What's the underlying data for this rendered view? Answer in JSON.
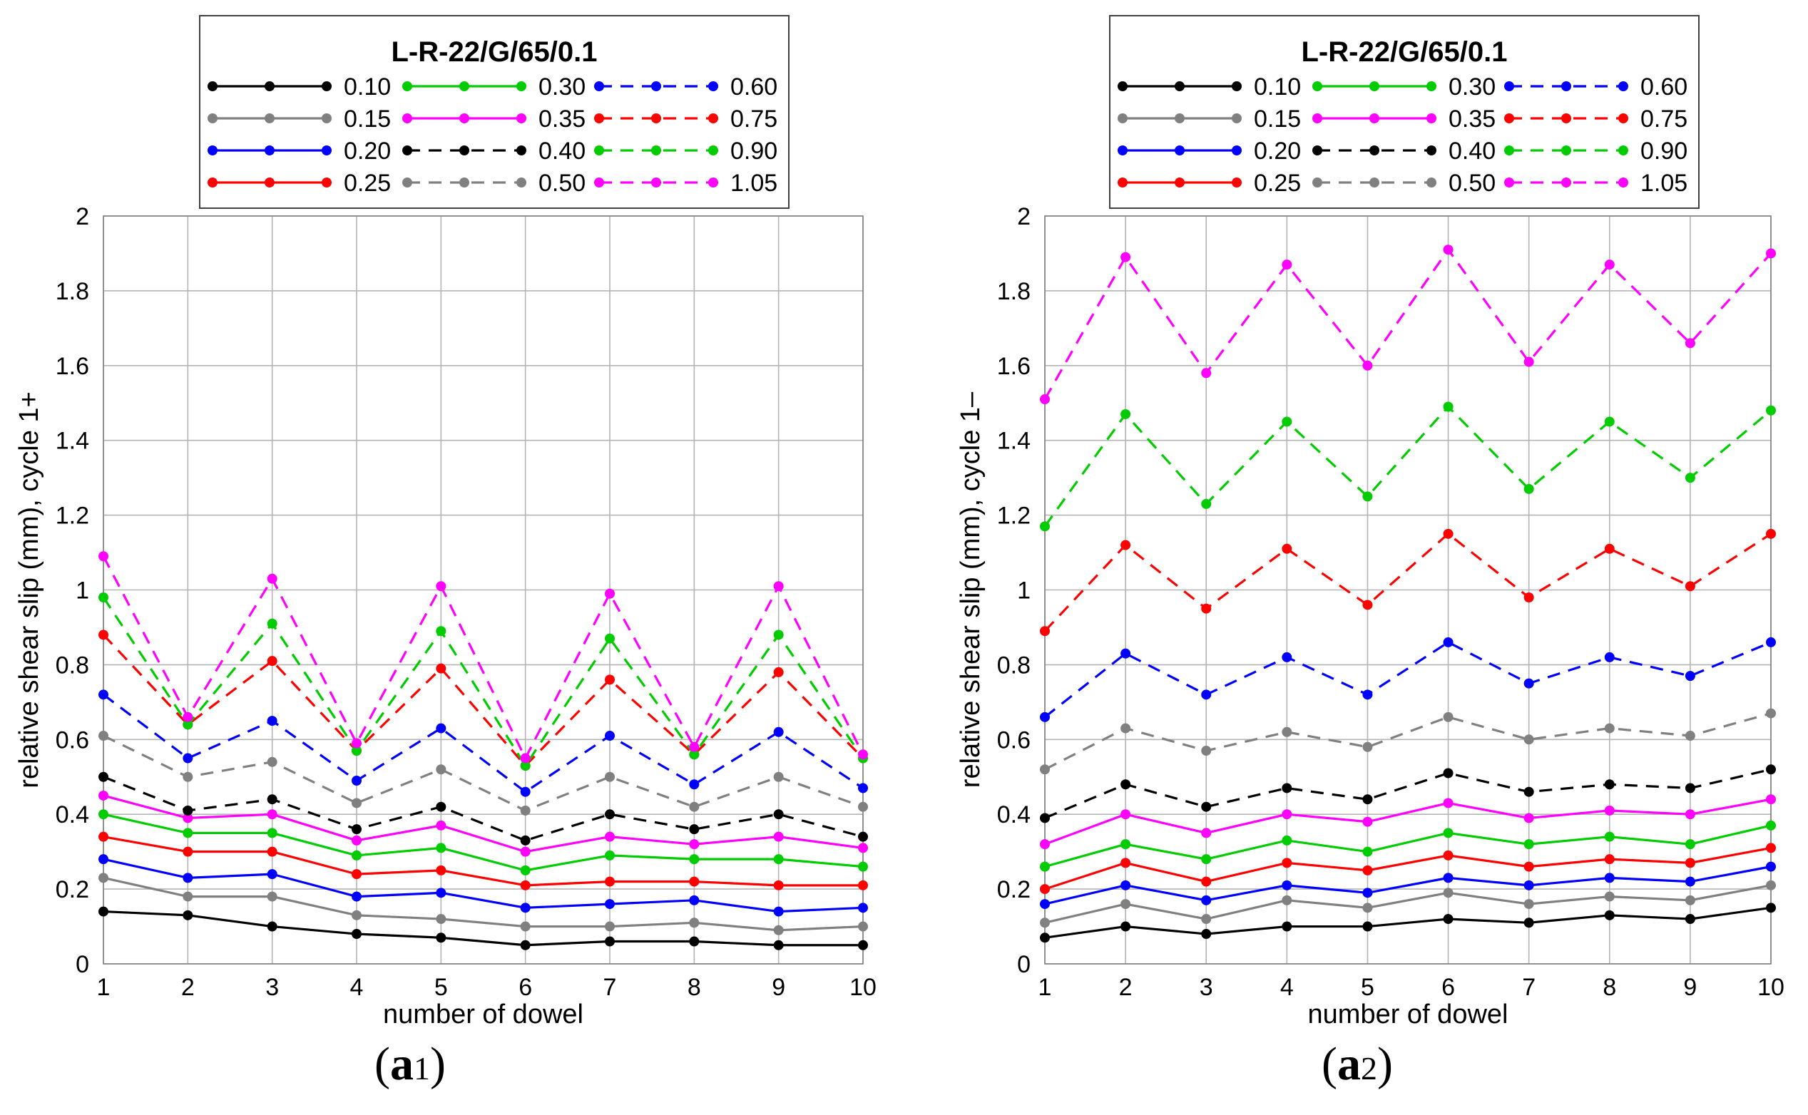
{
  "chart_data": [
    {
      "type": "line",
      "panel_label": {
        "paren_open": "(",
        "letter": "a",
        "index": "1",
        "paren_close": ")"
      },
      "legend_title": "L-R-22/G/65/0.1",
      "xlabel": "number of dowel",
      "ylabel": "relative shear slip (mm), cycle 1+",
      "xlim": [
        1,
        10
      ],
      "ylim": [
        0,
        2
      ],
      "x_ticks": [
        "1",
        "2",
        "3",
        "4",
        "5",
        "6",
        "7",
        "8",
        "9",
        "10"
      ],
      "y_ticks": [
        "0",
        "0.2",
        "0.4",
        "0.6",
        "0.8",
        "1",
        "1.2",
        "1.4",
        "1.6",
        "1.8",
        "2"
      ],
      "x": [
        1,
        2,
        3,
        4,
        5,
        6,
        7,
        8,
        9,
        10
      ],
      "series": [
        {
          "name": "0.10",
          "color": "#000000",
          "dash": "solid",
          "values": [
            0.14,
            0.13,
            0.1,
            0.08,
            0.07,
            0.05,
            0.06,
            0.06,
            0.05,
            0.05
          ]
        },
        {
          "name": "0.15",
          "color": "#808080",
          "dash": "solid",
          "values": [
            0.23,
            0.18,
            0.18,
            0.13,
            0.12,
            0.1,
            0.1,
            0.11,
            0.09,
            0.1
          ]
        },
        {
          "name": "0.20",
          "color": "#0000ff",
          "dash": "solid",
          "values": [
            0.28,
            0.23,
            0.24,
            0.18,
            0.19,
            0.15,
            0.16,
            0.17,
            0.14,
            0.15
          ]
        },
        {
          "name": "0.25",
          "color": "#ff0000",
          "dash": "solid",
          "values": [
            0.34,
            0.3,
            0.3,
            0.24,
            0.25,
            0.21,
            0.22,
            0.22,
            0.21,
            0.21
          ]
        },
        {
          "name": "0.30",
          "color": "#00cc00",
          "dash": "solid",
          "values": [
            0.4,
            0.35,
            0.35,
            0.29,
            0.31,
            0.25,
            0.29,
            0.28,
            0.28,
            0.26
          ]
        },
        {
          "name": "0.35",
          "color": "#ff00ff",
          "dash": "solid",
          "values": [
            0.45,
            0.39,
            0.4,
            0.33,
            0.37,
            0.3,
            0.34,
            0.32,
            0.34,
            0.31
          ]
        },
        {
          "name": "0.40",
          "color": "#000000",
          "dash": "dashed",
          "values": [
            0.5,
            0.41,
            0.44,
            0.36,
            0.42,
            0.33,
            0.4,
            0.36,
            0.4,
            0.34
          ]
        },
        {
          "name": "0.50",
          "color": "#808080",
          "dash": "dashed",
          "values": [
            0.61,
            0.5,
            0.54,
            0.43,
            0.52,
            0.41,
            0.5,
            0.42,
            0.5,
            0.42
          ]
        },
        {
          "name": "0.60",
          "color": "#0000ff",
          "dash": "dashed",
          "values": [
            0.72,
            0.55,
            0.65,
            0.49,
            0.63,
            0.46,
            0.61,
            0.48,
            0.62,
            0.47
          ]
        },
        {
          "name": "0.75",
          "color": "#ff0000",
          "dash": "dashed",
          "values": [
            0.88,
            0.64,
            0.81,
            0.57,
            0.79,
            0.53,
            0.76,
            0.56,
            0.78,
            0.55
          ]
        },
        {
          "name": "0.90",
          "color": "#00cc00",
          "dash": "dashed",
          "values": [
            0.98,
            0.64,
            0.91,
            0.57,
            0.89,
            0.53,
            0.87,
            0.56,
            0.88,
            0.55
          ]
        },
        {
          "name": "1.05",
          "color": "#ff00ff",
          "dash": "dashed",
          "values": [
            1.09,
            0.66,
            1.03,
            0.59,
            1.01,
            0.55,
            0.99,
            0.58,
            1.01,
            0.56
          ]
        }
      ]
    },
    {
      "type": "line",
      "panel_label": {
        "paren_open": "(",
        "letter": "a",
        "index": "2",
        "paren_close": ")"
      },
      "legend_title": "L-R-22/G/65/0.1",
      "xlabel": "number of dowel",
      "ylabel": "relative shear slip (mm), cycle 1–",
      "xlim": [
        1,
        10
      ],
      "ylim": [
        0,
        2
      ],
      "x_ticks": [
        "1",
        "2",
        "3",
        "4",
        "5",
        "6",
        "7",
        "8",
        "9",
        "10"
      ],
      "y_ticks": [
        "0",
        "0.2",
        "0.4",
        "0.6",
        "0.8",
        "1",
        "1.2",
        "1.4",
        "1.6",
        "1.8",
        "2"
      ],
      "x": [
        1,
        2,
        3,
        4,
        5,
        6,
        7,
        8,
        9,
        10
      ],
      "series": [
        {
          "name": "0.10",
          "color": "#000000",
          "dash": "solid",
          "values": [
            0.07,
            0.1,
            0.08,
            0.1,
            0.1,
            0.12,
            0.11,
            0.13,
            0.12,
            0.15
          ]
        },
        {
          "name": "0.15",
          "color": "#808080",
          "dash": "solid",
          "values": [
            0.11,
            0.16,
            0.12,
            0.17,
            0.15,
            0.19,
            0.16,
            0.18,
            0.17,
            0.21
          ]
        },
        {
          "name": "0.20",
          "color": "#0000ff",
          "dash": "solid",
          "values": [
            0.16,
            0.21,
            0.17,
            0.21,
            0.19,
            0.23,
            0.21,
            0.23,
            0.22,
            0.26
          ]
        },
        {
          "name": "0.25",
          "color": "#ff0000",
          "dash": "solid",
          "values": [
            0.2,
            0.27,
            0.22,
            0.27,
            0.25,
            0.29,
            0.26,
            0.28,
            0.27,
            0.31
          ]
        },
        {
          "name": "0.30",
          "color": "#00cc00",
          "dash": "solid",
          "values": [
            0.26,
            0.32,
            0.28,
            0.33,
            0.3,
            0.35,
            0.32,
            0.34,
            0.32,
            0.37
          ]
        },
        {
          "name": "0.35",
          "color": "#ff00ff",
          "dash": "solid",
          "values": [
            0.32,
            0.4,
            0.35,
            0.4,
            0.38,
            0.43,
            0.39,
            0.41,
            0.4,
            0.44
          ]
        },
        {
          "name": "0.40",
          "color": "#000000",
          "dash": "dashed",
          "values": [
            0.39,
            0.48,
            0.42,
            0.47,
            0.44,
            0.51,
            0.46,
            0.48,
            0.47,
            0.52
          ]
        },
        {
          "name": "0.50",
          "color": "#808080",
          "dash": "dashed",
          "values": [
            0.52,
            0.63,
            0.57,
            0.62,
            0.58,
            0.66,
            0.6,
            0.63,
            0.61,
            0.67
          ]
        },
        {
          "name": "0.60",
          "color": "#0000ff",
          "dash": "dashed",
          "values": [
            0.66,
            0.83,
            0.72,
            0.82,
            0.72,
            0.86,
            0.75,
            0.82,
            0.77,
            0.86
          ]
        },
        {
          "name": "0.75",
          "color": "#ff0000",
          "dash": "dashed",
          "values": [
            0.89,
            1.12,
            0.95,
            1.11,
            0.96,
            1.15,
            0.98,
            1.11,
            1.01,
            1.15
          ]
        },
        {
          "name": "0.90",
          "color": "#00cc00",
          "dash": "dashed",
          "values": [
            1.17,
            1.47,
            1.23,
            1.45,
            1.25,
            1.49,
            1.27,
            1.45,
            1.3,
            1.48
          ]
        },
        {
          "name": "1.05",
          "color": "#ff00ff",
          "dash": "dashed",
          "values": [
            1.51,
            1.89,
            1.58,
            1.87,
            1.6,
            1.91,
            1.61,
            1.87,
            1.66,
            1.9
          ]
        }
      ]
    }
  ]
}
